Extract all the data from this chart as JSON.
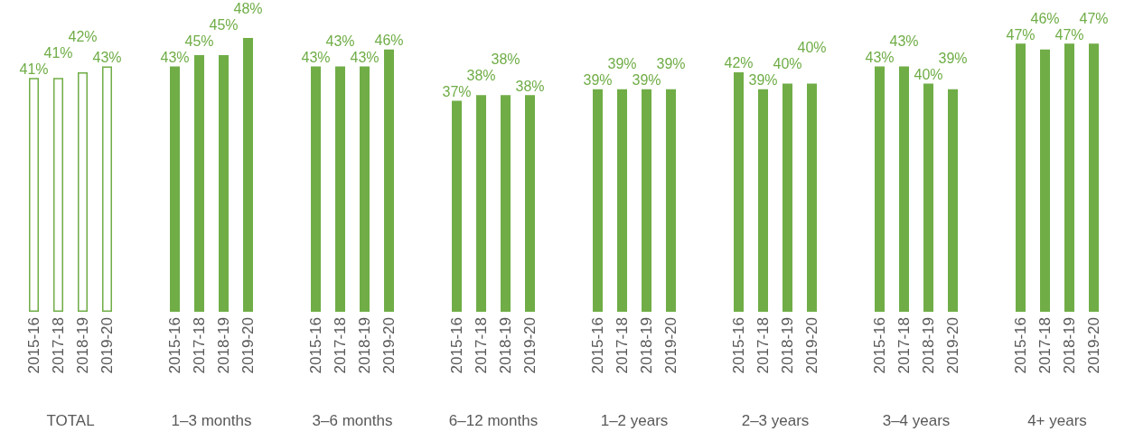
{
  "chart_data": [
    {
      "type": "bar",
      "xlabel": "TOTAL",
      "categories": [
        "2015-16",
        "2017-18",
        "2018-19",
        "2019-20"
      ],
      "series": [
        {
          "color": "#70ad47",
          "colors": [
            "#ffffff",
            "#ffffff",
            "#ffffff",
            "#ffffff"
          ],
          "values": [
            41,
            41,
            42,
            43
          ],
          "value_labels": [
            "41%",
            "41%",
            "42%",
            "43%"
          ]
        }
      ]
    },
    {
      "type": "bar",
      "xlabel": "1–3 months",
      "categories": [
        "2015-16",
        "2017-18",
        "2018-19",
        "2019-20"
      ],
      "series": [
        {
          "color": "#70ad47",
          "values": [
            43,
            45,
            45,
            48
          ],
          "value_labels": [
            "43%",
            "45%",
            "45%",
            "48%"
          ]
        }
      ]
    },
    {
      "type": "bar",
      "xlabel": "3–6 months",
      "categories": [
        "2015-16",
        "2017-18",
        "2018-19",
        "2019-20"
      ],
      "series": [
        {
          "color": "#70ad47",
          "values": [
            43,
            43,
            43,
            46
          ],
          "value_labels": [
            "43%",
            "43%",
            "43%",
            "46%"
          ]
        }
      ]
    },
    {
      "type": "bar",
      "xlabel": "6–12 months",
      "categories": [
        "2015-16",
        "2017-18",
        "2018-19",
        "2019-20"
      ],
      "series": [
        {
          "color": "#70ad47",
          "values": [
            37,
            38,
            38,
            38
          ],
          "value_labels": [
            "37%",
            "38%",
            "38%",
            "38%"
          ]
        }
      ]
    },
    {
      "type": "bar",
      "xlabel": "1–2 years",
      "categories": [
        "2015-16",
        "2017-18",
        "2018-19",
        "2019-20"
      ],
      "series": [
        {
          "color": "#70ad47",
          "values": [
            39,
            39,
            39,
            39
          ],
          "value_labels": [
            "39%",
            "39%",
            "39%",
            "39%"
          ]
        }
      ]
    },
    {
      "type": "bar",
      "xlabel": "2–3 years",
      "categories": [
        "2015-16",
        "2017-18",
        "2018-19",
        "2019-20"
      ],
      "series": [
        {
          "color": "#70ad47",
          "values": [
            42,
            39,
            40,
            40
          ],
          "value_labels": [
            "42%",
            "39%",
            "40%",
            "40%"
          ]
        }
      ]
    },
    {
      "type": "bar",
      "xlabel": "3–4 years",
      "categories": [
        "2015-16",
        "2017-18",
        "2018-19",
        "2019-20"
      ],
      "series": [
        {
          "color": "#70ad47",
          "values": [
            43,
            43,
            40,
            39
          ],
          "value_labels": [
            "43%",
            "43%",
            "40%",
            "39%"
          ]
        }
      ]
    },
    {
      "type": "bar",
      "xlabel": "4+ years",
      "categories": [
        "2015-16",
        "2017-18",
        "2018-19",
        "2019-20"
      ],
      "series": [
        {
          "color": "#70ad47",
          "values": [
            47,
            46,
            47,
            47
          ],
          "value_labels": [
            "47%",
            "46%",
            "47%",
            "47%"
          ]
        }
      ]
    }
  ]
}
